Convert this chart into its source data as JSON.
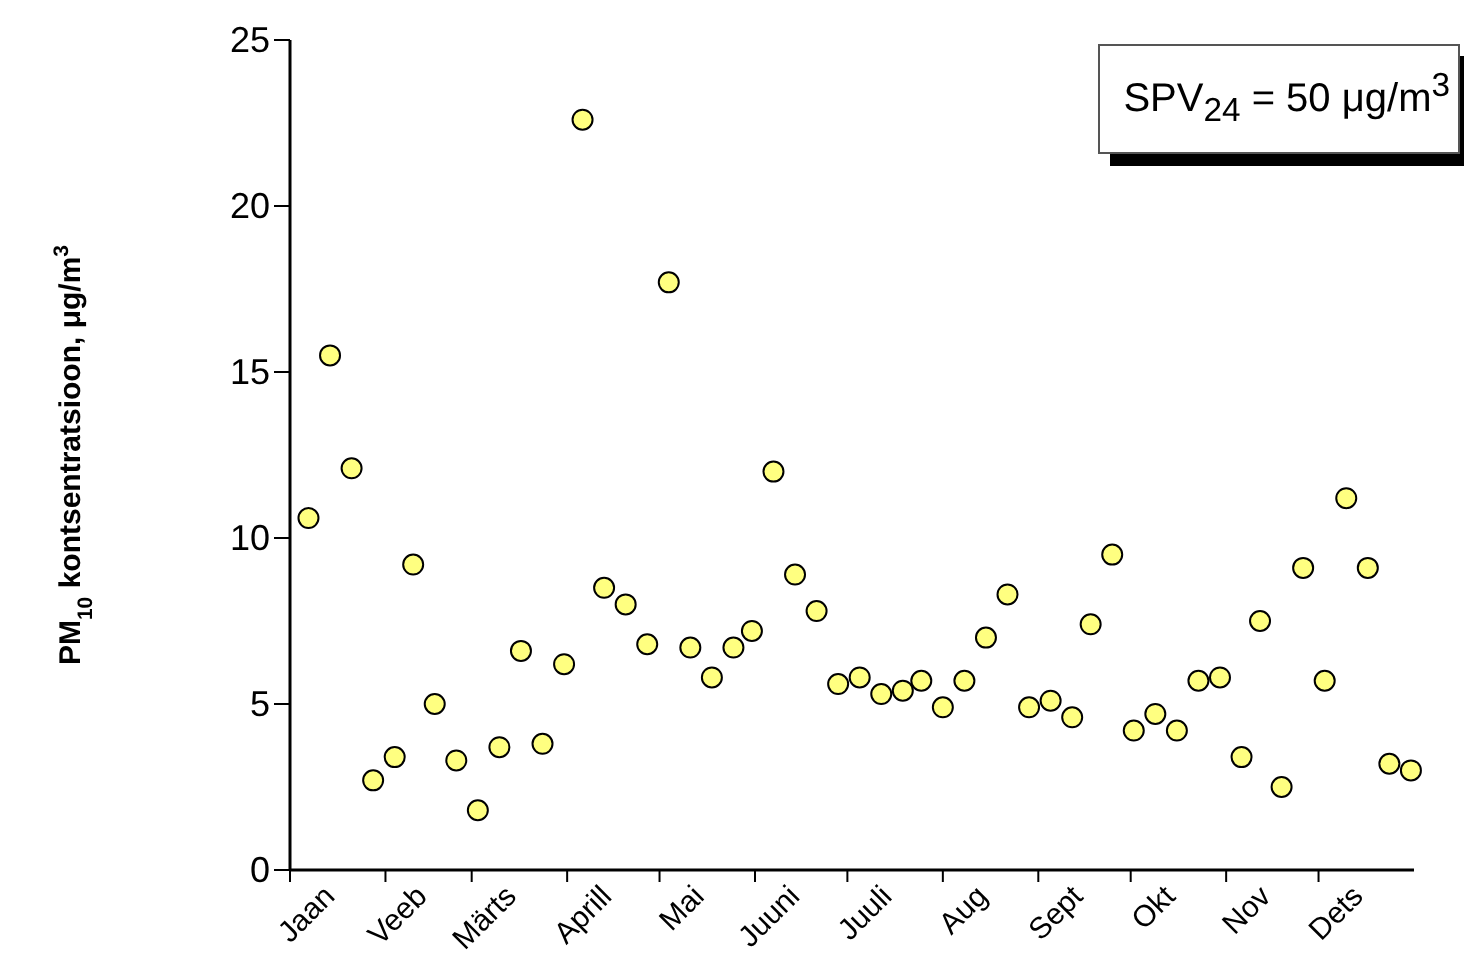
{
  "chart_data": {
    "type": "scatter",
    "ylabel": "PM$_{10}$ kontsentratsioon, μg/m$^{3}$",
    "x": [
      "--01-07",
      "--01-14",
      "--01-21",
      "--01-28",
      "--02-04",
      "--02-10",
      "--02-17",
      "--02-24",
      "--03-03",
      "--03-10",
      "--03-17",
      "--03-24",
      "--03-31",
      "--04-06",
      "--04-13",
      "--04-20",
      "--04-27",
      "--05-04",
      "--05-11",
      "--05-18",
      "--05-25",
      "--05-31",
      "--06-07",
      "--06-14",
      "--06-21",
      "--06-28",
      "--07-05",
      "--07-12",
      "--07-19",
      "--07-25",
      "--08-01",
      "--08-08",
      "--08-15",
      "--08-22",
      "--08-29",
      "--09-05",
      "--09-12",
      "--09-18",
      "--09-25",
      "--10-02",
      "--10-09",
      "--10-16",
      "--10-23",
      "--10-30",
      "--11-06",
      "--11-12",
      "--11-19",
      "--11-26",
      "--12-03",
      "--12-10",
      "--12-17",
      "--12-24",
      "--12-31"
    ],
    "series": [
      {
        "color": "#ffff80",
        "values": [
          10.6,
          15.5,
          12.1,
          2.7,
          3.4,
          9.2,
          5.0,
          3.3,
          1.8,
          3.7,
          6.6,
          3.8,
          6.2,
          22.6,
          8.5,
          8.0,
          6.8,
          17.7,
          6.7,
          5.8,
          6.7,
          7.2,
          12.0,
          8.9,
          7.8,
          5.6,
          5.8,
          5.3,
          5.4,
          5.7,
          4.9,
          5.7,
          7.0,
          8.3,
          4.9,
          5.1,
          4.6,
          7.4,
          9.5,
          4.2,
          4.7,
          4.2,
          5.7,
          5.8,
          3.4,
          7.5,
          2.5,
          9.1,
          5.7,
          11.2,
          9.1,
          3.2,
          3.0
        ]
      }
    ],
    "xlim": [
      "--01-01",
      "--12-31"
    ],
    "xticks": [
      {
        "value": "--01-01",
        "label": null
      },
      {
        "value": "--01-16",
        "label": "Jaan"
      },
      {
        "value": "--02-01",
        "label": null
      },
      {
        "value": "--02-15",
        "label": "Veeb"
      },
      {
        "value": "--03-01",
        "label": null
      },
      {
        "value": "--03-16",
        "label": "Märts"
      },
      {
        "value": "--04-01",
        "label": null
      },
      {
        "value": "--04-16",
        "label": "Aprill"
      },
      {
        "value": "--05-01",
        "label": null
      },
      {
        "value": "--05-16",
        "label": "Mai"
      },
      {
        "value": "--06-01",
        "label": null
      },
      {
        "value": "--06-16",
        "label": "Juuni"
      },
      {
        "value": "--07-01",
        "label": null
      },
      {
        "value": "--07-16",
        "label": "Juuli"
      },
      {
        "value": "--08-01",
        "label": null
      },
      {
        "value": "--08-16",
        "label": "Aug"
      },
      {
        "value": "--09-01",
        "label": null
      },
      {
        "value": "--09-16",
        "label": "Sept"
      },
      {
        "value": "--10-01",
        "label": null
      },
      {
        "value": "--10-16",
        "label": "Okt"
      },
      {
        "value": "--11-01",
        "label": null
      },
      {
        "value": "--11-16",
        "label": "Nov"
      },
      {
        "value": "--12-01",
        "label": null
      },
      {
        "value": "--12-16",
        "label": "Dets"
      }
    ],
    "ylim": [
      0,
      25
    ],
    "yticks": [
      0,
      5,
      10,
      15,
      20,
      25
    ],
    "marker": "circle",
    "grid": false,
    "annotations": [
      "SPV$_{24}$ = 50 μg/m$^{3}$"
    ]
  }
}
